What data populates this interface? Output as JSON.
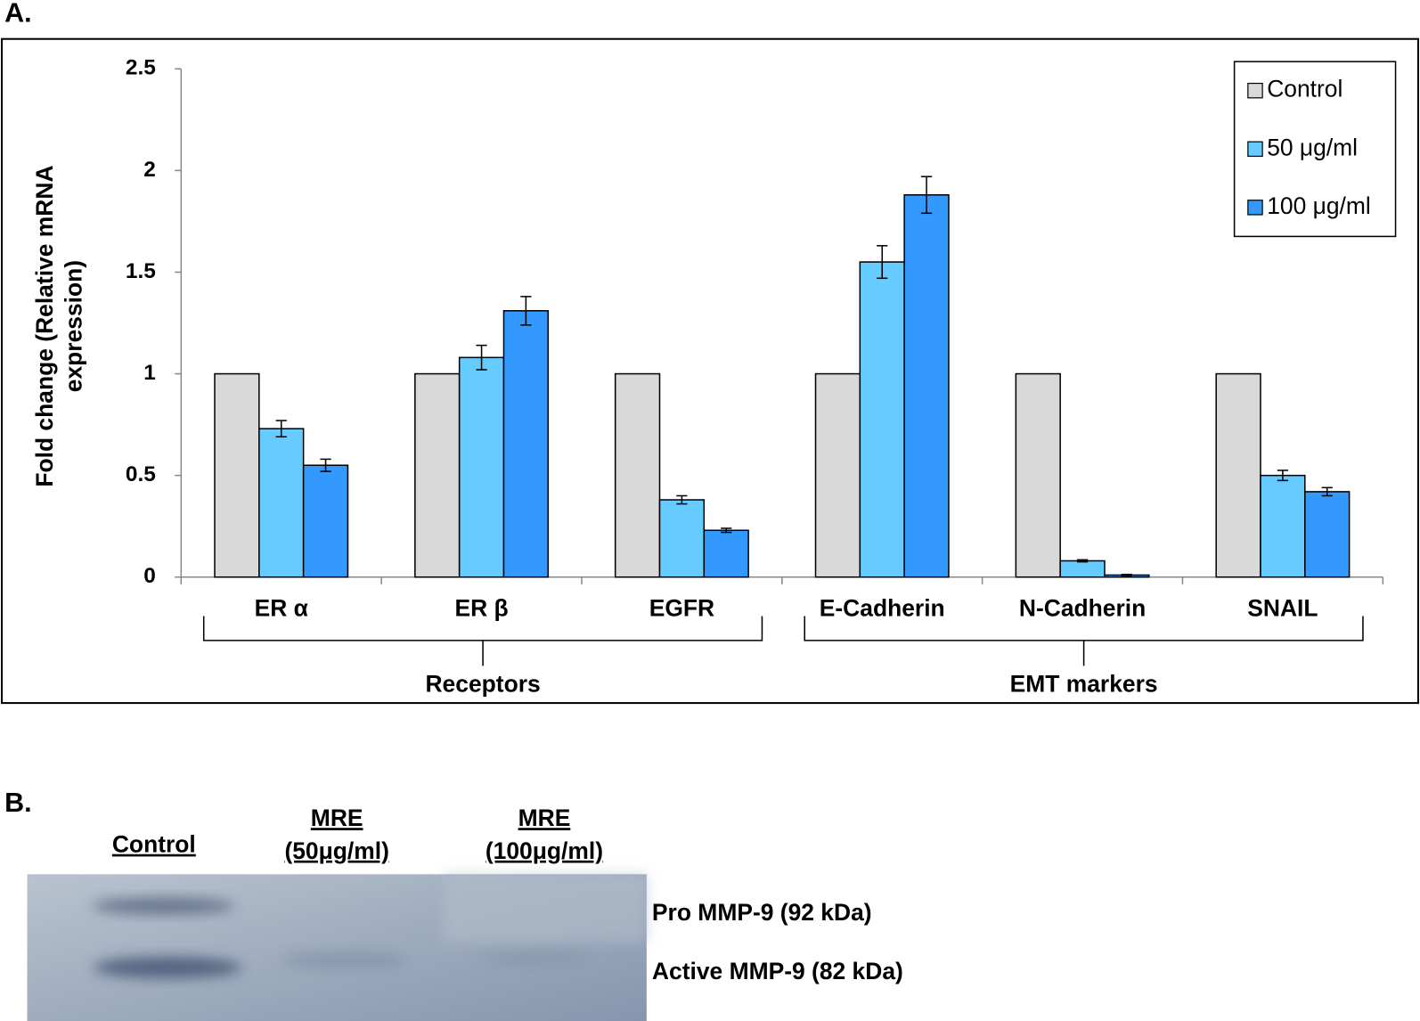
{
  "chart_data": {
    "type": "bar",
    "panel_label": "A.",
    "ylabel_lines": [
      "Fold change (Relative mRNA",
      "expression)"
    ],
    "categories": [
      "ER α",
      "ER β",
      "EGFR",
      "E-Cadherin",
      "N-Cadherin",
      "SNAIL"
    ],
    "groups": [
      {
        "name": "Receptors",
        "size": 3
      },
      {
        "name": "EMT markers",
        "size": 3
      }
    ],
    "series": [
      {
        "name": "Control",
        "color": "#d9d9d9",
        "values": [
          1,
          1,
          1,
          1,
          1,
          1
        ]
      },
      {
        "name": "50 μg/ml",
        "color": "#66ccff",
        "values": [
          0.73,
          1.08,
          0.38,
          1.55,
          0.08,
          0.5
        ],
        "errors": [
          0.04,
          0.06,
          0.02,
          0.08,
          0.005,
          0.025
        ]
      },
      {
        "name": "100 μg/ml",
        "color": "#3399ff",
        "values": [
          0.55,
          1.31,
          0.23,
          1.88,
          0.01,
          0.42
        ],
        "errors": [
          0.03,
          0.07,
          0.01,
          0.09,
          0.003,
          0.02
        ]
      }
    ],
    "ylim": [
      0,
      2.5
    ],
    "yticks": [
      0,
      0.5,
      1,
      1.5,
      2,
      2.5
    ],
    "grid": false,
    "legend": "top-right"
  },
  "panel_b": {
    "label": "B.",
    "lanes": [
      {
        "lines": [
          "Control"
        ]
      },
      {
        "lines": [
          "MRE",
          "(50μg/ml)"
        ]
      },
      {
        "lines": [
          "MRE",
          "(100μg/ml)"
        ]
      }
    ],
    "bands": [
      "Pro MMP-9 (92 kDa)",
      "Active MMP-9 (82 kDa)"
    ]
  }
}
